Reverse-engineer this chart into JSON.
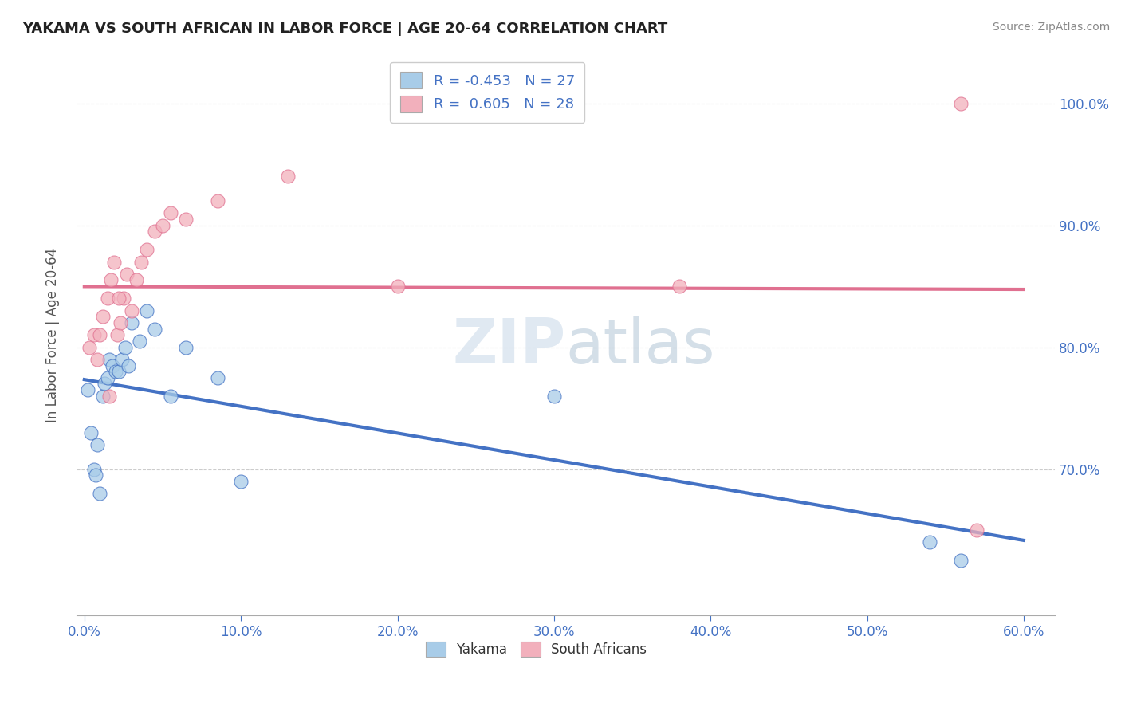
{
  "title": "YAKAMA VS SOUTH AFRICAN IN LABOR FORCE | AGE 20-64 CORRELATION CHART",
  "source": "Source: ZipAtlas.com",
  "ylabel": "In Labor Force | Age 20-64",
  "xlim": [
    -0.005,
    0.62
  ],
  "ylim": [
    0.58,
    1.04
  ],
  "yticks": [
    0.7,
    0.8,
    0.9,
    1.0
  ],
  "xticks": [
    0.0,
    0.1,
    0.2,
    0.3,
    0.4,
    0.5,
    0.6
  ],
  "yakama_x": [
    0.002,
    0.004,
    0.006,
    0.007,
    0.008,
    0.01,
    0.012,
    0.013,
    0.015,
    0.016,
    0.018,
    0.02,
    0.022,
    0.024,
    0.026,
    0.028,
    0.03,
    0.035,
    0.04,
    0.045,
    0.055,
    0.065,
    0.085,
    0.3,
    0.54,
    0.1,
    0.56
  ],
  "yakama_y": [
    0.765,
    0.73,
    0.7,
    0.695,
    0.72,
    0.68,
    0.76,
    0.77,
    0.775,
    0.79,
    0.785,
    0.78,
    0.78,
    0.79,
    0.8,
    0.785,
    0.82,
    0.805,
    0.83,
    0.815,
    0.76,
    0.8,
    0.775,
    0.76,
    0.64,
    0.69,
    0.625
  ],
  "sa_x": [
    0.003,
    0.006,
    0.008,
    0.01,
    0.012,
    0.015,
    0.017,
    0.019,
    0.021,
    0.023,
    0.025,
    0.027,
    0.03,
    0.033,
    0.036,
    0.04,
    0.045,
    0.05,
    0.055,
    0.065,
    0.085,
    0.13,
    0.2,
    0.38,
    0.56,
    0.57,
    0.016,
    0.022
  ],
  "sa_y": [
    0.8,
    0.81,
    0.79,
    0.81,
    0.825,
    0.84,
    0.855,
    0.87,
    0.81,
    0.82,
    0.84,
    0.86,
    0.83,
    0.855,
    0.87,
    0.88,
    0.895,
    0.9,
    0.91,
    0.905,
    0.92,
    0.94,
    0.85,
    0.85,
    1.0,
    0.65,
    0.76,
    0.84
  ],
  "r_yakama": -0.453,
  "n_yakama": 27,
  "r_sa": 0.605,
  "n_sa": 28,
  "yakama_color": "#a8cce8",
  "sa_color": "#f2b0bc",
  "yakama_line_color": "#4472C4",
  "sa_line_color": "#e07090",
  "text_color": "#4472C4",
  "watermark_color": "#d0dce8",
  "background_color": "#ffffff",
  "grid_color": "#cccccc"
}
